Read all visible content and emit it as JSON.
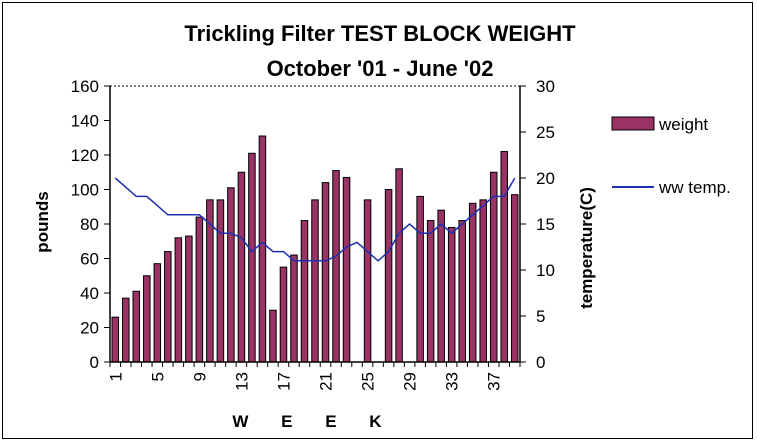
{
  "chart_data": {
    "type": "bar",
    "title_line1": "Trickling Filter TEST BLOCK WEIGHT",
    "title_line2": "October '01 - June '02",
    "xlabel": "W E E K",
    "ylabel": "pounds",
    "y2label": "temperature(C)",
    "ylim": [
      0,
      160
    ],
    "y_ticks": [
      0,
      20,
      40,
      60,
      80,
      100,
      120,
      140,
      160
    ],
    "y2lim": [
      0,
      30
    ],
    "y2_ticks": [
      0,
      5,
      10,
      15,
      20,
      25,
      30
    ],
    "x_tick_labels": [
      "1",
      "5",
      "9",
      "13",
      "17",
      "21",
      "25",
      "29",
      "33",
      "37"
    ],
    "legend_position": "right",
    "grid": false,
    "weeks": [
      1,
      2,
      3,
      4,
      5,
      6,
      7,
      8,
      9,
      10,
      11,
      12,
      13,
      14,
      15,
      16,
      17,
      18,
      19,
      20,
      21,
      22,
      23,
      24,
      25,
      26,
      27,
      28,
      29,
      30,
      31,
      32,
      33,
      34,
      35,
      36,
      37,
      38,
      39
    ],
    "series": [
      {
        "name": "weight",
        "kind": "bar",
        "color": "#993366",
        "values": [
          26,
          37,
          41,
          50,
          57,
          64,
          72,
          73,
          84,
          94,
          94,
          101,
          110,
          121,
          131,
          30,
          55,
          62,
          82,
          94,
          104,
          111,
          107,
          null,
          94,
          null,
          100,
          112,
          null,
          96,
          82,
          88,
          78,
          82,
          92,
          94,
          110,
          122,
          97
        ]
      },
      {
        "name": "ww temp.",
        "kind": "line",
        "axis": "right",
        "color": "#1f2fb0",
        "values": [
          20,
          19,
          18,
          18,
          17,
          16,
          16,
          16,
          16,
          15,
          14,
          14,
          13.5,
          12,
          13,
          12,
          12,
          11,
          11,
          11,
          11,
          11.5,
          12.5,
          13,
          12,
          11,
          12,
          14,
          15,
          14,
          14,
          15,
          14,
          15,
          16,
          17,
          18,
          18,
          20
        ]
      }
    ]
  }
}
